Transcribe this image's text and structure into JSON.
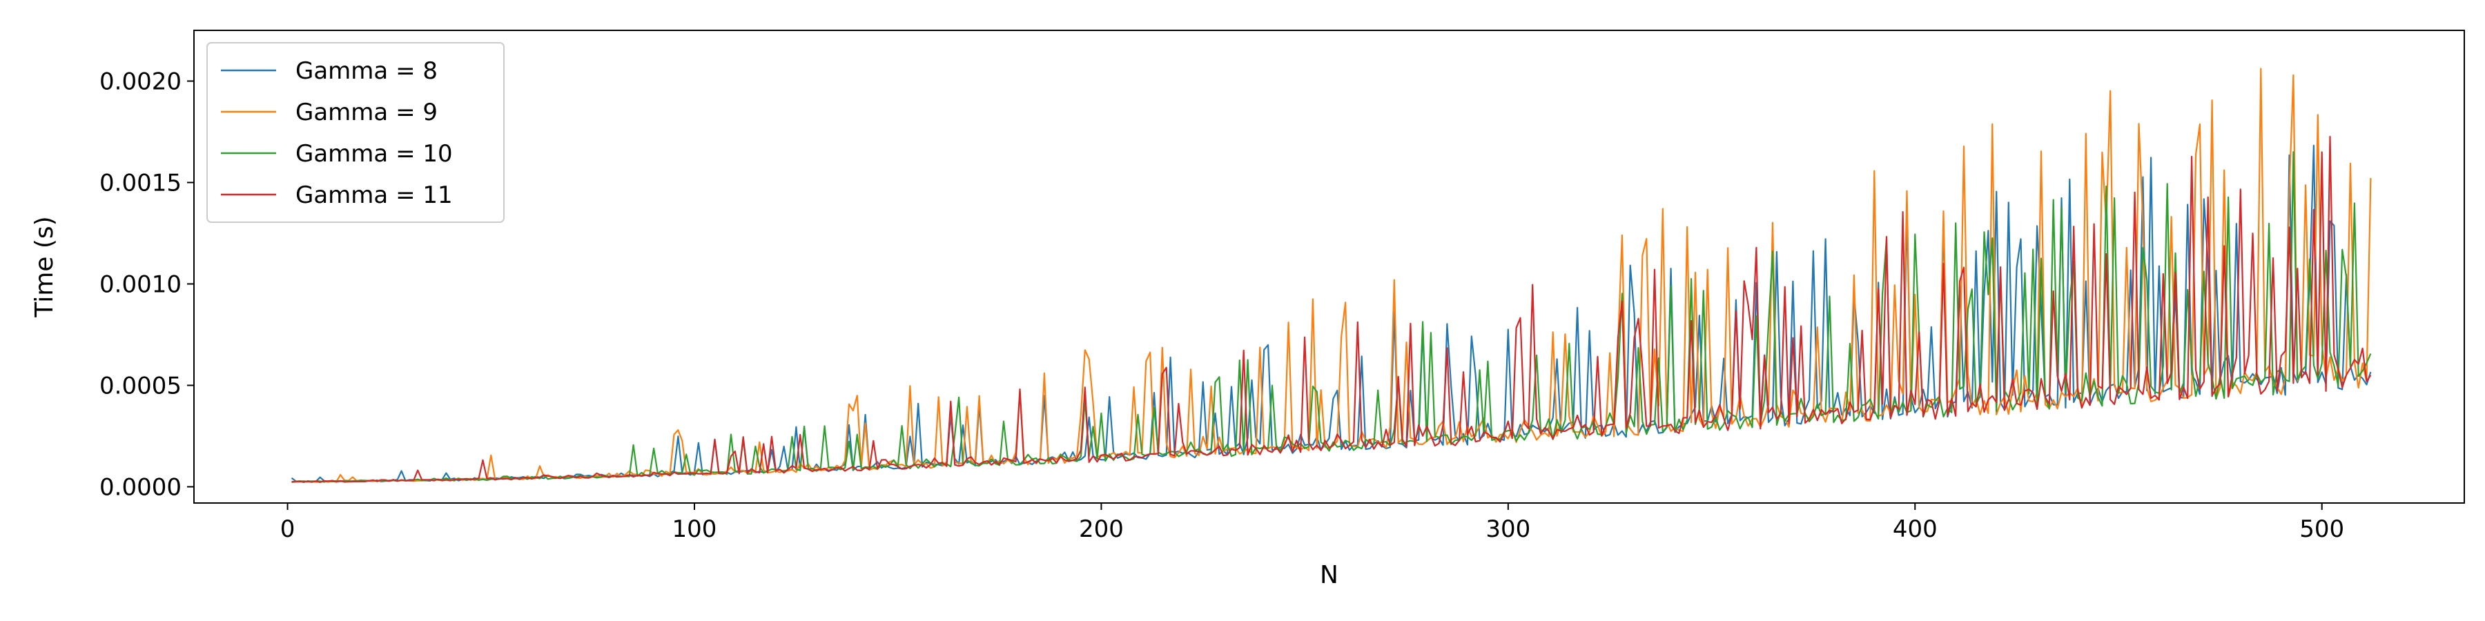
{
  "chart_data": {
    "type": "line",
    "xlabel": "N",
    "ylabel": "Time (s)",
    "xlim": [
      -23,
      535
    ],
    "ylim": [
      -8e-05,
      0.00225
    ],
    "xticks": [
      0,
      100,
      200,
      300,
      400,
      500
    ],
    "xtick_labels": [
      "0",
      "100",
      "200",
      "300",
      "400",
      "500"
    ],
    "yticks": [
      0,
      0.0005,
      0.001,
      0.0015,
      0.002
    ],
    "ytick_labels": [
      "0.0000",
      "0.0005",
      "0.0010",
      "0.0015",
      "0.0020"
    ],
    "grid": false,
    "legend": "top-left",
    "series": [
      {
        "name": "Gamma = 8",
        "color": "#1f77b4",
        "spike": 0.55,
        "noise": 0.03,
        "amp": 1.0,
        "x": [
          0,
          512
        ],
        "y_min": [
          2.5e-05,
          0.00055
        ],
        "y_max": [
          5e-05,
          0.0019
        ]
      },
      {
        "name": "Gamma = 9",
        "color": "#ff7f0e",
        "spike": 0.55,
        "noise": 0.03,
        "amp": 1.08,
        "x": [
          0,
          512
        ],
        "y_min": [
          2.5e-05,
          0.00055
        ],
        "y_max": [
          5e-05,
          0.00215
        ]
      },
      {
        "name": "Gamma = 10",
        "color": "#2ca02c",
        "spike": 0.55,
        "noise": 0.03,
        "amp": 1.02,
        "x": [
          0,
          512
        ],
        "y_min": [
          2.5e-05,
          0.00055
        ],
        "y_max": [
          5e-05,
          0.00175
        ]
      },
      {
        "name": "Gamma = 11",
        "color": "#d62728",
        "spike": 0.55,
        "noise": 0.03,
        "amp": 1.0,
        "x": [
          0,
          512
        ],
        "y_min": [
          2.5e-05,
          0.00055
        ],
        "y_max": [
          5e-05,
          0.0019
        ]
      }
    ]
  }
}
